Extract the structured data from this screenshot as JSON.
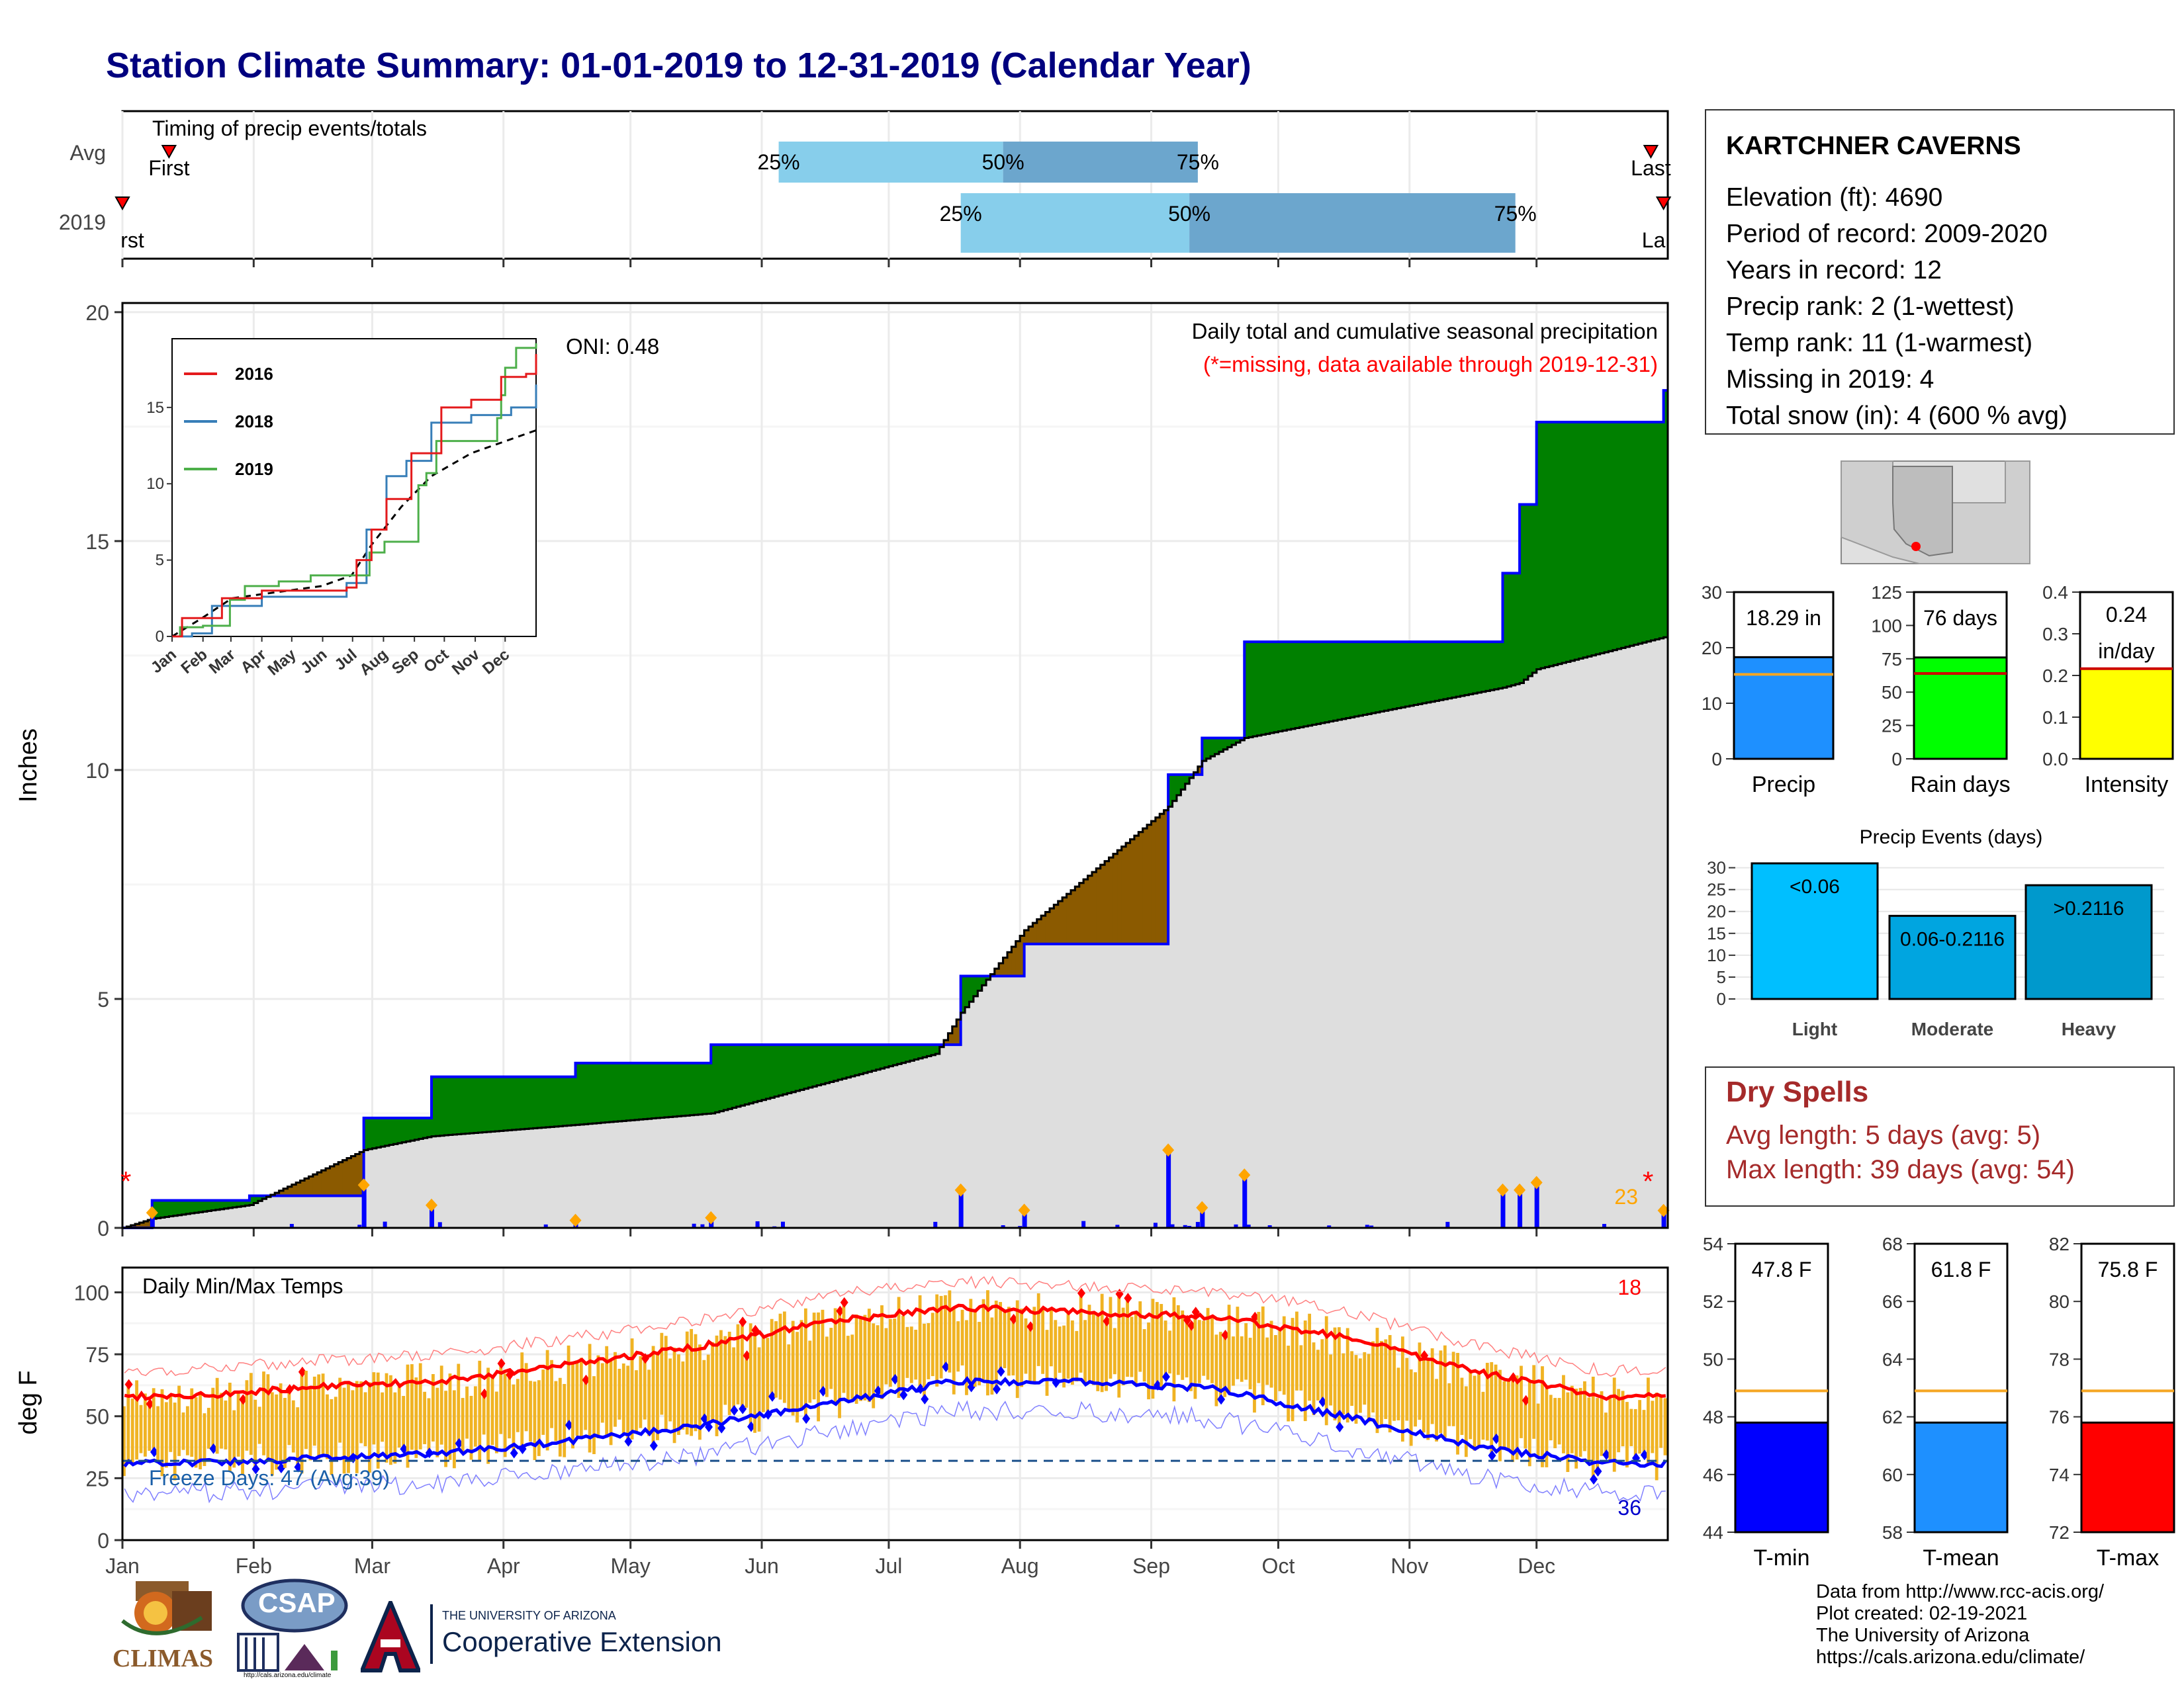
{
  "title": "Station Climate Summary: 01-01-2019 to 12-31-2019 (Calendar Year)",
  "station": {
    "name": "KARTCHNER CAVERNS",
    "lines": [
      "Elevation (ft): 4690",
      "Period of record: 2009-2020",
      "Years in record: 12",
      "Precip rank: 2 (1-wettest)",
      "Temp rank: 11 (1-warmest)",
      "Missing in 2019: 4",
      "Total snow (in): 4 (600 % avg)"
    ]
  },
  "timing": {
    "heading": "Timing of precip events/totals",
    "row_labels": [
      "Avg",
      "2019"
    ],
    "first_label": "First",
    "last_label": "Last",
    "first_label_2019": "rst",
    "last_label_2019": "La",
    "pct_labels": [
      "25%",
      "50%",
      "75%"
    ],
    "avg": {
      "first": "2019-01-12",
      "q25": "2019-06-05",
      "q50": "2019-07-28",
      "q75": "2019-09-12",
      "last": "2019-12-28"
    },
    "y2019": {
      "first": "2019-01-01",
      "q25": "2019-07-18",
      "q50": "2019-09-10",
      "q75": "2019-11-26",
      "last": "2019-12-31"
    },
    "colors": {
      "light": "#87ceeb",
      "dark": "#6ca6cd"
    }
  },
  "precip_panel": {
    "ylabel": "Inches",
    "yticks": [
      "0",
      "5",
      "10",
      "15",
      "20"
    ],
    "annot_title": "Daily total and cumulative seasonal precipitation",
    "annot_missing": "(*=missing, data available through 2019-12-31)",
    "oni": "ONI: 0.48",
    "missing_count": "23",
    "colors": {
      "surplus": "#008000",
      "deficit": "#8b5a00",
      "normal_fill": "#dedede",
      "obs_line": "#0000ff",
      "daily_bar": "#0000ff",
      "marker": "#ffa500",
      "missing": "#ff0000"
    }
  },
  "inset": {
    "xticks": [
      "Jan",
      "Feb",
      "Mar",
      "Apr",
      "May",
      "Jun",
      "Jul",
      "Aug",
      "Sep",
      "Oct",
      "Nov",
      "Dec"
    ],
    "yticks": [
      "0",
      "5",
      "10",
      "15"
    ],
    "legend": [
      {
        "name": "2016",
        "color": "#e41a1c"
      },
      {
        "name": "2018",
        "color": "#377eb8"
      },
      {
        "name": "2019",
        "color": "#4daf4a"
      }
    ]
  },
  "temp_panel": {
    "ylabel": "deg F",
    "heading": "Daily Min/Max Temps",
    "yticks": [
      "0",
      "25",
      "50",
      "75",
      "100"
    ],
    "freeze_text": "Freeze Days: 47 (Avg:39)",
    "count_high": "18",
    "count_low": "36",
    "colors": {
      "bar": "#f0b323",
      "max_line": "#ff0000",
      "min_line": "#0000ff",
      "freeze_line": "#1a4f8b"
    }
  },
  "months": [
    "Jan",
    "Feb",
    "Mar",
    "Apr",
    "May",
    "Jun",
    "Jul",
    "Aug",
    "Sep",
    "Oct",
    "Nov",
    "Dec"
  ],
  "side_bars": {
    "precip": {
      "label": "Precip",
      "value_text": "18.29 in",
      "value": 18.29,
      "avg": 15.2,
      "yticks": [
        "0",
        "10",
        "20",
        "30"
      ],
      "ymax": 30,
      "color": "#1e90ff"
    },
    "raindays": {
      "label": "Rain days",
      "value_text": "76 days",
      "value": 76,
      "avg": 64,
      "yticks": [
        "0",
        "25",
        "50",
        "75",
        "100",
        "125"
      ],
      "ymax": 125,
      "color": "#00ff00"
    },
    "intensity": {
      "label": "Intensity",
      "value_text_1": "0.24",
      "value_text_2": "in/day",
      "value": 0.24,
      "avg": 0.24,
      "yticks": [
        "0.0",
        "0.1",
        "0.2",
        "0.3",
        "0.4"
      ],
      "ymax": 0.4,
      "color": "#ffff00"
    }
  },
  "events": {
    "title": "Precip Events (days)",
    "yticks": [
      "0",
      "5",
      "10",
      "15",
      "20",
      "25",
      "30"
    ],
    "categories": [
      "Light",
      "Moderate",
      "Heavy"
    ],
    "bar_labels": [
      "<0.06",
      "0.06-0.2116",
      ">0.2116"
    ],
    "values": [
      31,
      19,
      26
    ],
    "colors": [
      "#00bfff",
      "#00a5e0",
      "#0099cc"
    ]
  },
  "dry_spells": {
    "title": "Dry Spells",
    "avg_text": "Avg length: 5 days (avg: 5)",
    "max_text": "Max length: 39 days (avg: 54)"
  },
  "temp_bars": [
    {
      "label": "T-min",
      "value_text": "47.8 F",
      "value": 47.8,
      "avg": 48.9,
      "ymin": 44,
      "ymax": 54,
      "yticks": [
        "44",
        "46",
        "48",
        "50",
        "52",
        "54"
      ],
      "color": "#0000ff"
    },
    {
      "label": "T-mean",
      "value_text": "61.8 F",
      "value": 61.8,
      "avg": 62.9,
      "ymin": 58,
      "ymax": 68,
      "yticks": [
        "58",
        "60",
        "62",
        "64",
        "66",
        "68"
      ],
      "color": "#1e90ff"
    },
    {
      "label": "T-max",
      "value_text": "75.8 F",
      "value": 75.8,
      "avg": 76.9,
      "ymin": 72,
      "ymax": 82,
      "yticks": [
        "72",
        "74",
        "76",
        "78",
        "80",
        "82"
      ],
      "color": "#ff0000"
    }
  ],
  "footer": {
    "lines": [
      "Data from http://www.rcc-acis.org/",
      "Plot created: 02-19-2021",
      "The University of Arizona",
      "https://cals.arizona.edu/climate/"
    ]
  },
  "logos": {
    "climas": "CLIMAS",
    "csap": "CSAP",
    "csap_url": "http://cals.arizona.edu/climate",
    "ua_small": "THE UNIVERSITY OF ARIZONA",
    "ua_big": "Cooperative Extension"
  },
  "chart_data": [
    {
      "type": "bar",
      "title": "Timing of precip events/totals",
      "categories": [
        "Avg",
        "2019"
      ],
      "series": [
        {
          "name": "25%",
          "values": [
            "2019-06-05",
            "2019-07-18"
          ]
        },
        {
          "name": "50%",
          "values": [
            "2019-07-28",
            "2019-09-10"
          ]
        },
        {
          "name": "75%",
          "values": [
            "2019-09-12",
            "2019-11-26"
          ]
        }
      ]
    },
    {
      "type": "area",
      "title": "Daily total and cumulative seasonal precipitation",
      "ylabel": "Inches",
      "ylim": [
        0,
        20
      ],
      "x": [
        "2019-01-01",
        "2019-01-08",
        "2019-01-31",
        "2019-02-27",
        "2019-03-15",
        "2019-04-18",
        "2019-05-20",
        "2019-07-12",
        "2019-07-18",
        "2019-08-02",
        "2019-09-05",
        "2019-09-13",
        "2019-09-23",
        "2019-11-23",
        "2019-11-27",
        "2019-12-01",
        "2019-12-31"
      ],
      "series": [
        {
          "name": "Observed",
          "values": [
            0,
            0.6,
            0.7,
            2.4,
            3.3,
            3.6,
            4.0,
            4.0,
            5.5,
            6.2,
            9.9,
            10.7,
            12.8,
            14.3,
            15.8,
            17.6,
            18.29
          ]
        },
        {
          "name": "Average",
          "values": [
            0,
            0.2,
            0.5,
            1.7,
            2.0,
            2.25,
            2.5,
            3.8,
            4.7,
            6.5,
            9.2,
            10.2,
            10.7,
            11.8,
            11.9,
            12.2,
            12.9
          ]
        }
      ]
    },
    {
      "type": "line",
      "title": "Daily Min/Max Temps",
      "ylabel": "deg F",
      "ylim": [
        0,
        110
      ],
      "categories": [
        "Jan",
        "Feb",
        "Mar",
        "Apr",
        "May",
        "Jun",
        "Jul",
        "Aug",
        "Sep",
        "Oct",
        "Nov",
        "Dec"
      ],
      "series": [
        {
          "name": "Avg max",
          "values": [
            58,
            62,
            64,
            71,
            78,
            88,
            94,
            92,
            90,
            82,
            68,
            58
          ]
        },
        {
          "name": "Avg min",
          "values": [
            31,
            33,
            35,
            40,
            46,
            55,
            64,
            64,
            61,
            50,
            38,
            31
          ]
        }
      ]
    },
    {
      "type": "bar",
      "title": "Precip Events (days)",
      "categories": [
        "Light",
        "Moderate",
        "Heavy"
      ],
      "values": [
        31,
        19,
        26
      ],
      "ylim": [
        0,
        30
      ]
    },
    {
      "type": "bar",
      "categories": [
        "Precip",
        "Rain days",
        "Intensity"
      ],
      "values": [
        18.29,
        76,
        0.24
      ]
    },
    {
      "type": "bar",
      "categories": [
        "T-min",
        "T-mean",
        "T-max"
      ],
      "values": [
        47.8,
        61.8,
        75.8
      ]
    }
  ]
}
